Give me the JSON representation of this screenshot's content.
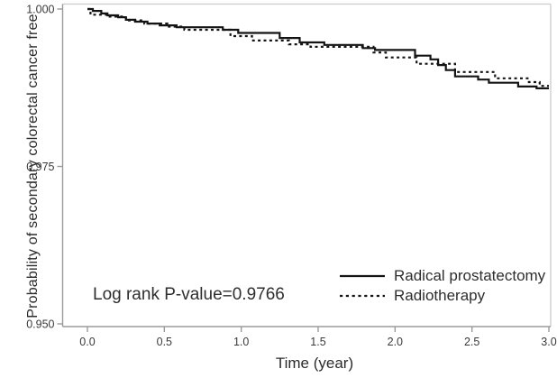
{
  "figure": {
    "background": "#ffffff",
    "curve_color": "#141414",
    "axis_color": "#9b9b9b",
    "frame_light_color": "#cbcbcb",
    "tick_label_color": "#3a3a3a",
    "text_color": "#2b2b2b"
  },
  "chart_data": {
    "type": "line",
    "subtype": "kaplan-meier-step",
    "title": "",
    "xlabel": "Time (year)",
    "ylabel": "Probability of secondary colorectal cancer free",
    "xlim": [
      0.0,
      3.0
    ],
    "ylim": [
      0.95,
      1.0
    ],
    "xticks": [
      0.0,
      0.5,
      1.0,
      1.5,
      2.0,
      2.5,
      3.0
    ],
    "xtick_labels": [
      "0.0",
      "0.5",
      "1.0",
      "1.5",
      "2.0",
      "2.5",
      "3.0"
    ],
    "yticks": [
      1.0,
      0.975,
      0.95
    ],
    "ytick_labels": [
      "1.000",
      "0.975",
      "0.950"
    ],
    "grid": false,
    "legend_position": "inside-bottom-right",
    "annotation": "Log rank P-value=0.9766",
    "series": [
      {
        "name": "Radical prostatectomy",
        "line_style": "solid",
        "color": "#141414",
        "points": [
          [
            0.0,
            1.0
          ],
          [
            0.035,
            0.9997
          ],
          [
            0.09,
            0.9993
          ],
          [
            0.13,
            0.999
          ],
          [
            0.2,
            0.9987
          ],
          [
            0.25,
            0.9983
          ],
          [
            0.31,
            0.998
          ],
          [
            0.39,
            0.9977
          ],
          [
            0.47,
            0.9974
          ],
          [
            0.58,
            0.9971
          ],
          [
            0.88,
            0.9967
          ],
          [
            0.98,
            0.9962
          ],
          [
            1.25,
            0.9954
          ],
          [
            1.38,
            0.9947
          ],
          [
            1.54,
            0.9943
          ],
          [
            1.79,
            0.9938
          ],
          [
            1.87,
            0.9935
          ],
          [
            2.13,
            0.9926
          ],
          [
            2.23,
            0.992
          ],
          [
            2.28,
            0.9911
          ],
          [
            2.33,
            0.9903
          ],
          [
            2.39,
            0.9893
          ],
          [
            2.54,
            0.9888
          ],
          [
            2.61,
            0.9883
          ],
          [
            2.8,
            0.9877
          ],
          [
            2.92,
            0.9874
          ],
          [
            3.0,
            0.9874
          ]
        ]
      },
      {
        "name": "Radiotherapy",
        "line_style": "dotted",
        "color": "#141414",
        "points": [
          [
            0.0,
            1.0
          ],
          [
            0.02,
            0.9991
          ],
          [
            0.13,
            0.9988
          ],
          [
            0.25,
            0.9982
          ],
          [
            0.37,
            0.9977
          ],
          [
            0.52,
            0.9972
          ],
          [
            0.63,
            0.9967
          ],
          [
            0.93,
            0.9957
          ],
          [
            1.07,
            0.995
          ],
          [
            1.31,
            0.9944
          ],
          [
            1.45,
            0.994
          ],
          [
            1.86,
            0.9931
          ],
          [
            1.94,
            0.9923
          ],
          [
            2.14,
            0.9913
          ],
          [
            2.39,
            0.99
          ],
          [
            2.65,
            0.989
          ],
          [
            2.87,
            0.9884
          ],
          [
            2.94,
            0.9878
          ],
          [
            3.0,
            0.9878
          ]
        ]
      }
    ]
  },
  "legend": {
    "items": [
      {
        "label": "Radical prostatectomy",
        "style": "solid"
      },
      {
        "label": "Radiotherapy",
        "style": "dotted"
      }
    ]
  },
  "annotation": {
    "text": "Log rank P-value=0.9766"
  }
}
